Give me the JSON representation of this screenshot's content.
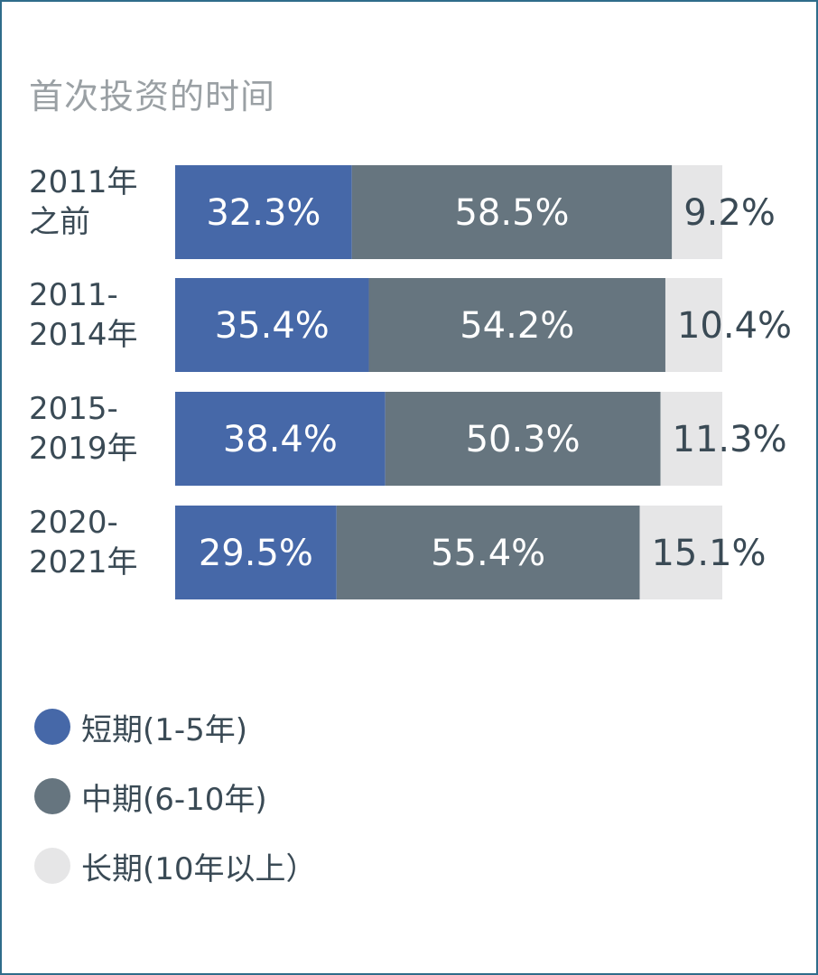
{
  "chart_data": {
    "type": "bar",
    "orientation": "horizontal",
    "stacked": true,
    "title": "首次投资的时间",
    "categories": [
      [
        "2011年",
        "之前"
      ],
      [
        "2011-",
        "2014年"
      ],
      [
        "2015-",
        "2019年"
      ],
      [
        "2020-",
        "2021年"
      ]
    ],
    "series": [
      {
        "name": "短期(1-5年)",
        "color": "#4668a8",
        "values": [
          32.3,
          35.4,
          38.4,
          29.5
        ],
        "labels": [
          "32.3%",
          "35.4%",
          "38.4%",
          "29.5%"
        ]
      },
      {
        "name": "中期(6-10年)",
        "color": "#66757f",
        "values": [
          58.5,
          54.2,
          50.3,
          55.4
        ],
        "labels": [
          "58.5%",
          "54.2%",
          "50.3%",
          "55.4%"
        ]
      },
      {
        "name": "长期(10年以上）",
        "color": "#e6e6e7",
        "values": [
          9.2,
          10.4,
          11.3,
          15.1
        ],
        "labels": [
          "9.2%",
          "10.4%",
          "11.3%",
          "15.1%"
        ]
      }
    ],
    "xlim": [
      0,
      100
    ],
    "legend_position": "bottom-left",
    "grid": false
  }
}
